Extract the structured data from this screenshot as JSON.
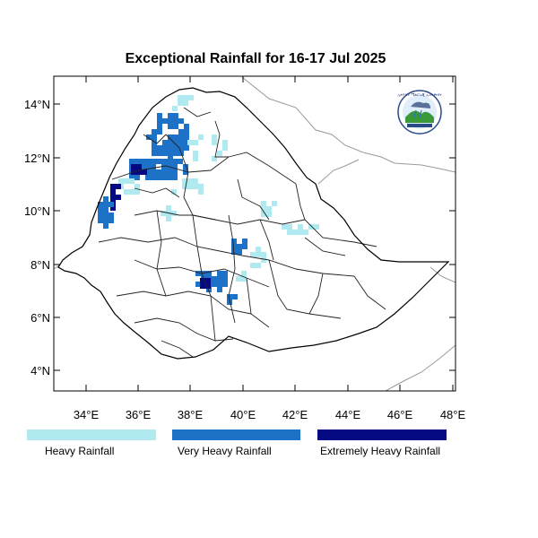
{
  "title": "Exceptional Rainfall for 16-17 Jul 2025",
  "lat_ticks": [
    "14°N",
    "12°N",
    "10°N",
    "8°N",
    "6°N",
    "4°N"
  ],
  "lon_ticks": [
    "34°E",
    "36°E",
    "38°E",
    "40°E",
    "42°E",
    "44°E",
    "46°E",
    "48°E"
  ],
  "lat_range": [
    3.2,
    15.0
  ],
  "lon_range": [
    32.8,
    48.2
  ],
  "legend": [
    {
      "label": "Heavy Rainfall",
      "color": "#aeeaf0"
    },
    {
      "label": "Very Heavy Rainfall",
      "color": "#1d72c8"
    },
    {
      "label": "Extremely Heavy Rainfall",
      "color": "#050a82"
    }
  ],
  "logo": {
    "icon": "ethiopian-meteorology-institute-logo",
    "text": "ኢትዮጵያ ሜቴሮሎጂ ኢንስቲትዩት"
  },
  "colors": {
    "frame": "#000000",
    "border": "#000000",
    "region": "#222222",
    "neighbor": "#9a9a9a"
  }
}
